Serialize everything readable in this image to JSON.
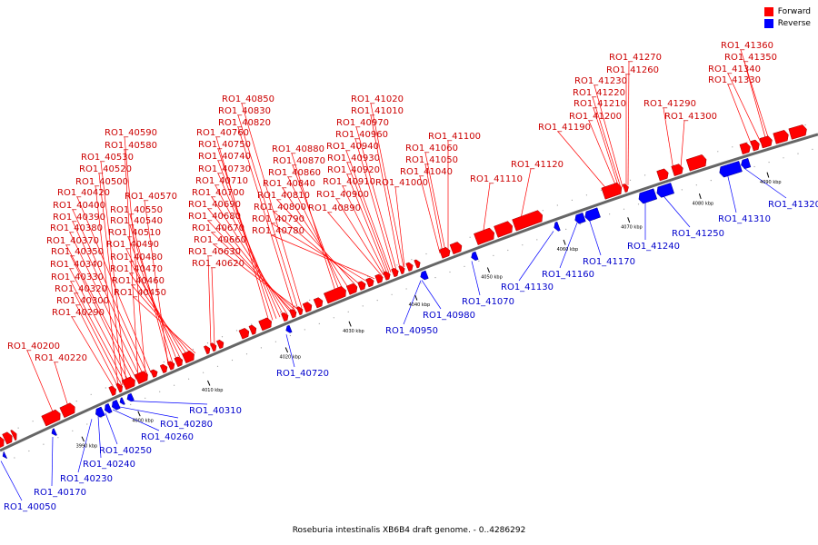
{
  "caption": "Roseburia intestinalis XB6B4 draft genome. - 0..4286292",
  "legend": [
    {
      "label": "Forward",
      "color": "#ff0000"
    },
    {
      "label": "Reverse",
      "color": "#0000ff"
    }
  ],
  "colors": {
    "forward": "#ff0000",
    "reverse": "#0000ff",
    "forward_label": "#cc0000",
    "reverse_label": "#0000cc",
    "backbone": "#666666"
  },
  "ticks": [
    "3990 kbp",
    "4000 kbp",
    "4010 kbp",
    "4020 kbp",
    "4030 kbp",
    "4040 kbp",
    "4050 kbp",
    "4060 kbp",
    "4070 kbp",
    "4080 kbp",
    "4090 kbp"
  ],
  "forward_labels": [
    "RO1_40200",
    "RO1_40220",
    "RO1_40290",
    "RO1_40300",
    "RO1_40320",
    "RO1_40330",
    "RO1_40340",
    "RO1_40350",
    "RO1_40370",
    "RO1_40380",
    "RO1_40390",
    "RO1_40400",
    "RO1_40420",
    "RO1_40500",
    "RO1_40520",
    "RO1_40530",
    "RO1_40580",
    "RO1_40590",
    "RO1_40570",
    "RO1_40550",
    "RO1_40540",
    "RO1_40510",
    "RO1_40490",
    "RO1_40480",
    "RO1_40470",
    "RO1_40460",
    "RO1_40450",
    "RO1_40630",
    "RO1_40620",
    "RO1_40850",
    "RO1_40830",
    "RO1_40820",
    "RO1_40760",
    "RO1_40750",
    "RO1_40740",
    "RO1_40730",
    "RO1_40710",
    "RO1_40700",
    "RO1_40690",
    "RO1_40680",
    "RO1_40670",
    "RO1_40660",
    "RO1_40880",
    "RO1_40870",
    "RO1_40860",
    "RO1_40840",
    "RO1_40810",
    "RO1_40800",
    "RO1_40790",
    "RO1_40780",
    "RO1_41020",
    "RO1_41010",
    "RO1_40970",
    "RO1_40960",
    "RO1_40940",
    "RO1_40930",
    "RO1_40920",
    "RO1_40910",
    "RO1_40900",
    "RO1_40890",
    "RO1_41000",
    "RO1_41100",
    "RO1_41060",
    "RO1_41050",
    "RO1_41040",
    "RO1_41110",
    "RO1_41120",
    "RO1_41270",
    "RO1_41260",
    "RO1_41230",
    "RO1_41220",
    "RO1_41210",
    "RO1_41200",
    "RO1_41190",
    "RO1_41290",
    "RO1_41300",
    "RO1_41360",
    "RO1_41350",
    "RO1_41340",
    "RO1_41330"
  ],
  "reverse_labels": [
    "RO1_40310",
    "RO1_40280",
    "RO1_40260",
    "RO1_40250",
    "RO1_40240",
    "RO1_40230",
    "RO1_40170",
    "RO1_40050",
    "RO1_40720",
    "RO1_40950",
    "RO1_40980",
    "RO1_41070",
    "RO1_41130",
    "RO1_41160",
    "RO1_41170",
    "RO1_41240",
    "RO1_41250",
    "RO1_41310",
    "RO1_41320"
  ]
}
